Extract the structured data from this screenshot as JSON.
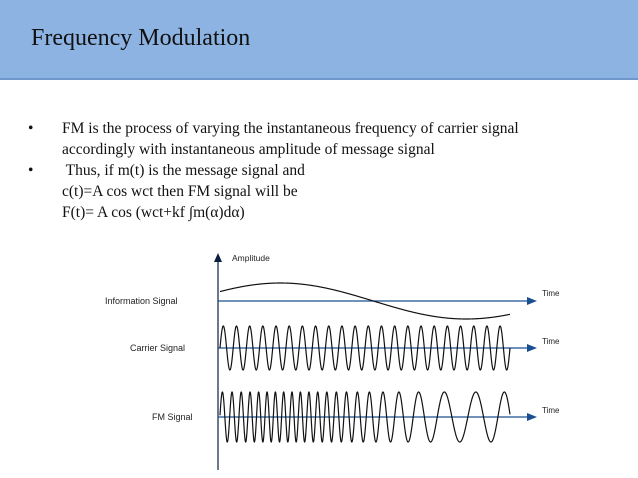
{
  "slide": {
    "title": "Frequency Modulation"
  },
  "bullets": [
    {
      "symbol": "•",
      "lines": [
        "FM is the process of varying the instantaneous frequency of carrier signal",
        "accordingly with instantaneous amplitude of message signal"
      ]
    },
    {
      "symbol": "•",
      "lines": [
        " Thus, if m(t) is the message signal and",
        "c(t)=A cos wct then FM signal will be",
        "F(t)= A cos (wct+kf ∫m(α)dα)"
      ]
    }
  ],
  "diagram": {
    "amplitude_label": "Amplitude",
    "signals": [
      {
        "label": "Information Signal",
        "time_label": "Time"
      },
      {
        "label": "Carrier Signal",
        "time_label": "Time"
      },
      {
        "label": "FM Signal",
        "time_label": "Time"
      }
    ]
  }
}
